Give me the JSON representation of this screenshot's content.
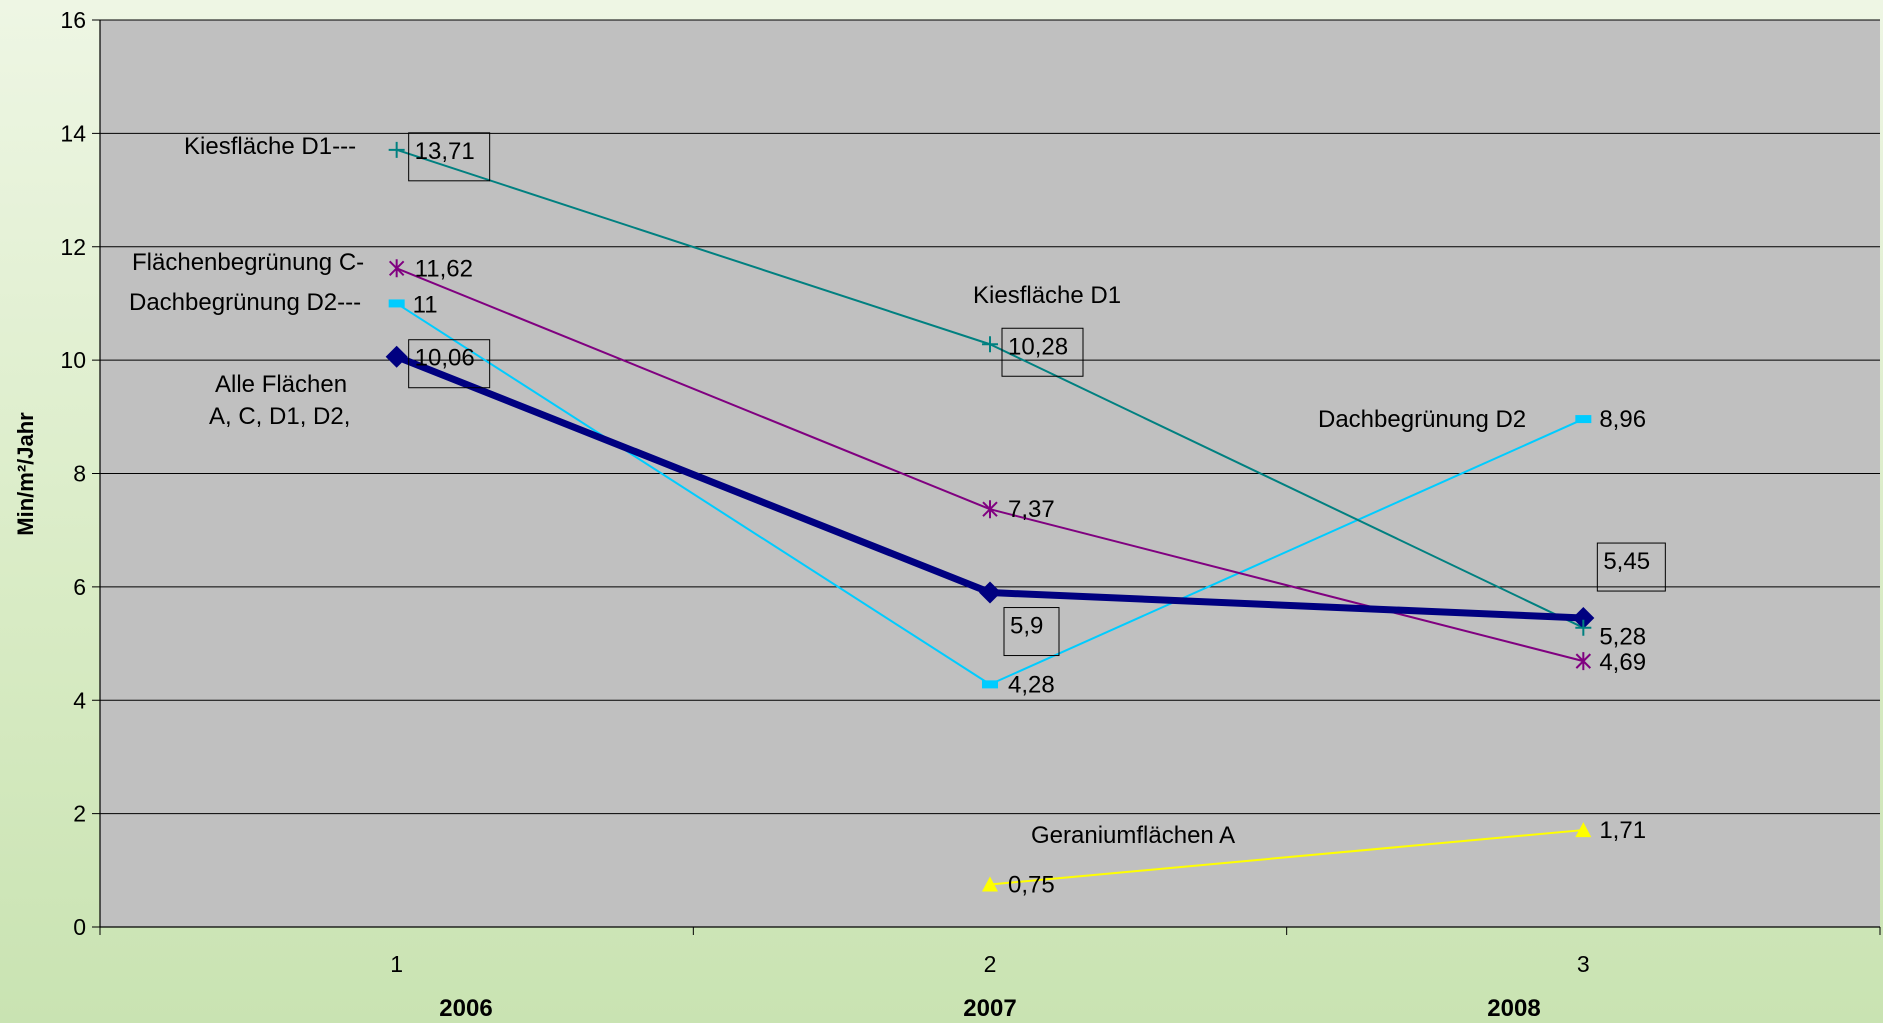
{
  "chart_data": {
    "type": "line",
    "ylabel": "Min/m²/Jahr",
    "ylim": [
      0,
      16
    ],
    "yticks": [
      0,
      2,
      4,
      6,
      8,
      10,
      12,
      14,
      16
    ],
    "x": [
      1,
      2,
      3
    ],
    "xtick_labels": [
      "1",
      "2",
      "3"
    ],
    "year_labels": [
      "2006",
      "2007",
      "2008"
    ],
    "grid": true,
    "series": [
      {
        "name": "Alle Flächen A, C, D1, D2,",
        "color": "#000080",
        "marker": "diamond",
        "values": [
          10.06,
          5.9,
          5.45
        ],
        "labels": [
          "10,06",
          "5,9",
          "5,45"
        ]
      },
      {
        "name": "Kiesfläche D1",
        "color": "#008080",
        "marker": "plus",
        "values": [
          13.71,
          10.28,
          5.28
        ],
        "labels": [
          "13,71",
          "10,28",
          "5,28"
        ]
      },
      {
        "name": "Flächenbegrünung C",
        "color": "#800080",
        "marker": "asterisk",
        "values": [
          11.62,
          7.37,
          4.69
        ],
        "labels": [
          "11,62",
          "7,37",
          "4,69"
        ]
      },
      {
        "name": "Dachbegrünung D2",
        "color": "#00ccff",
        "marker": "square",
        "values": [
          11,
          4.28,
          8.96
        ],
        "labels": [
          "11",
          "4,28",
          "8,96"
        ]
      },
      {
        "name": "Geraniumflächen A",
        "color": "#ffff00",
        "marker": "triangle",
        "values": [
          null,
          0.75,
          1.71
        ],
        "labels": [
          "",
          "0,75",
          "1,71"
        ]
      }
    ],
    "annotations": {
      "kies_d1_start": "Kiesfläche D1---",
      "flaechen_c_start": "Flächenbegrünung C-",
      "dach_d2_start": "Dachbegrünung D2---",
      "alle_line1": "Alle Flächen",
      "alle_line2": "A, C, D1, D2,",
      "kies_d1_mid": "Kiesfläche D1",
      "dach_d2_end": "Dachbegrünung D2",
      "geranium": "Geraniumflächen A"
    }
  }
}
